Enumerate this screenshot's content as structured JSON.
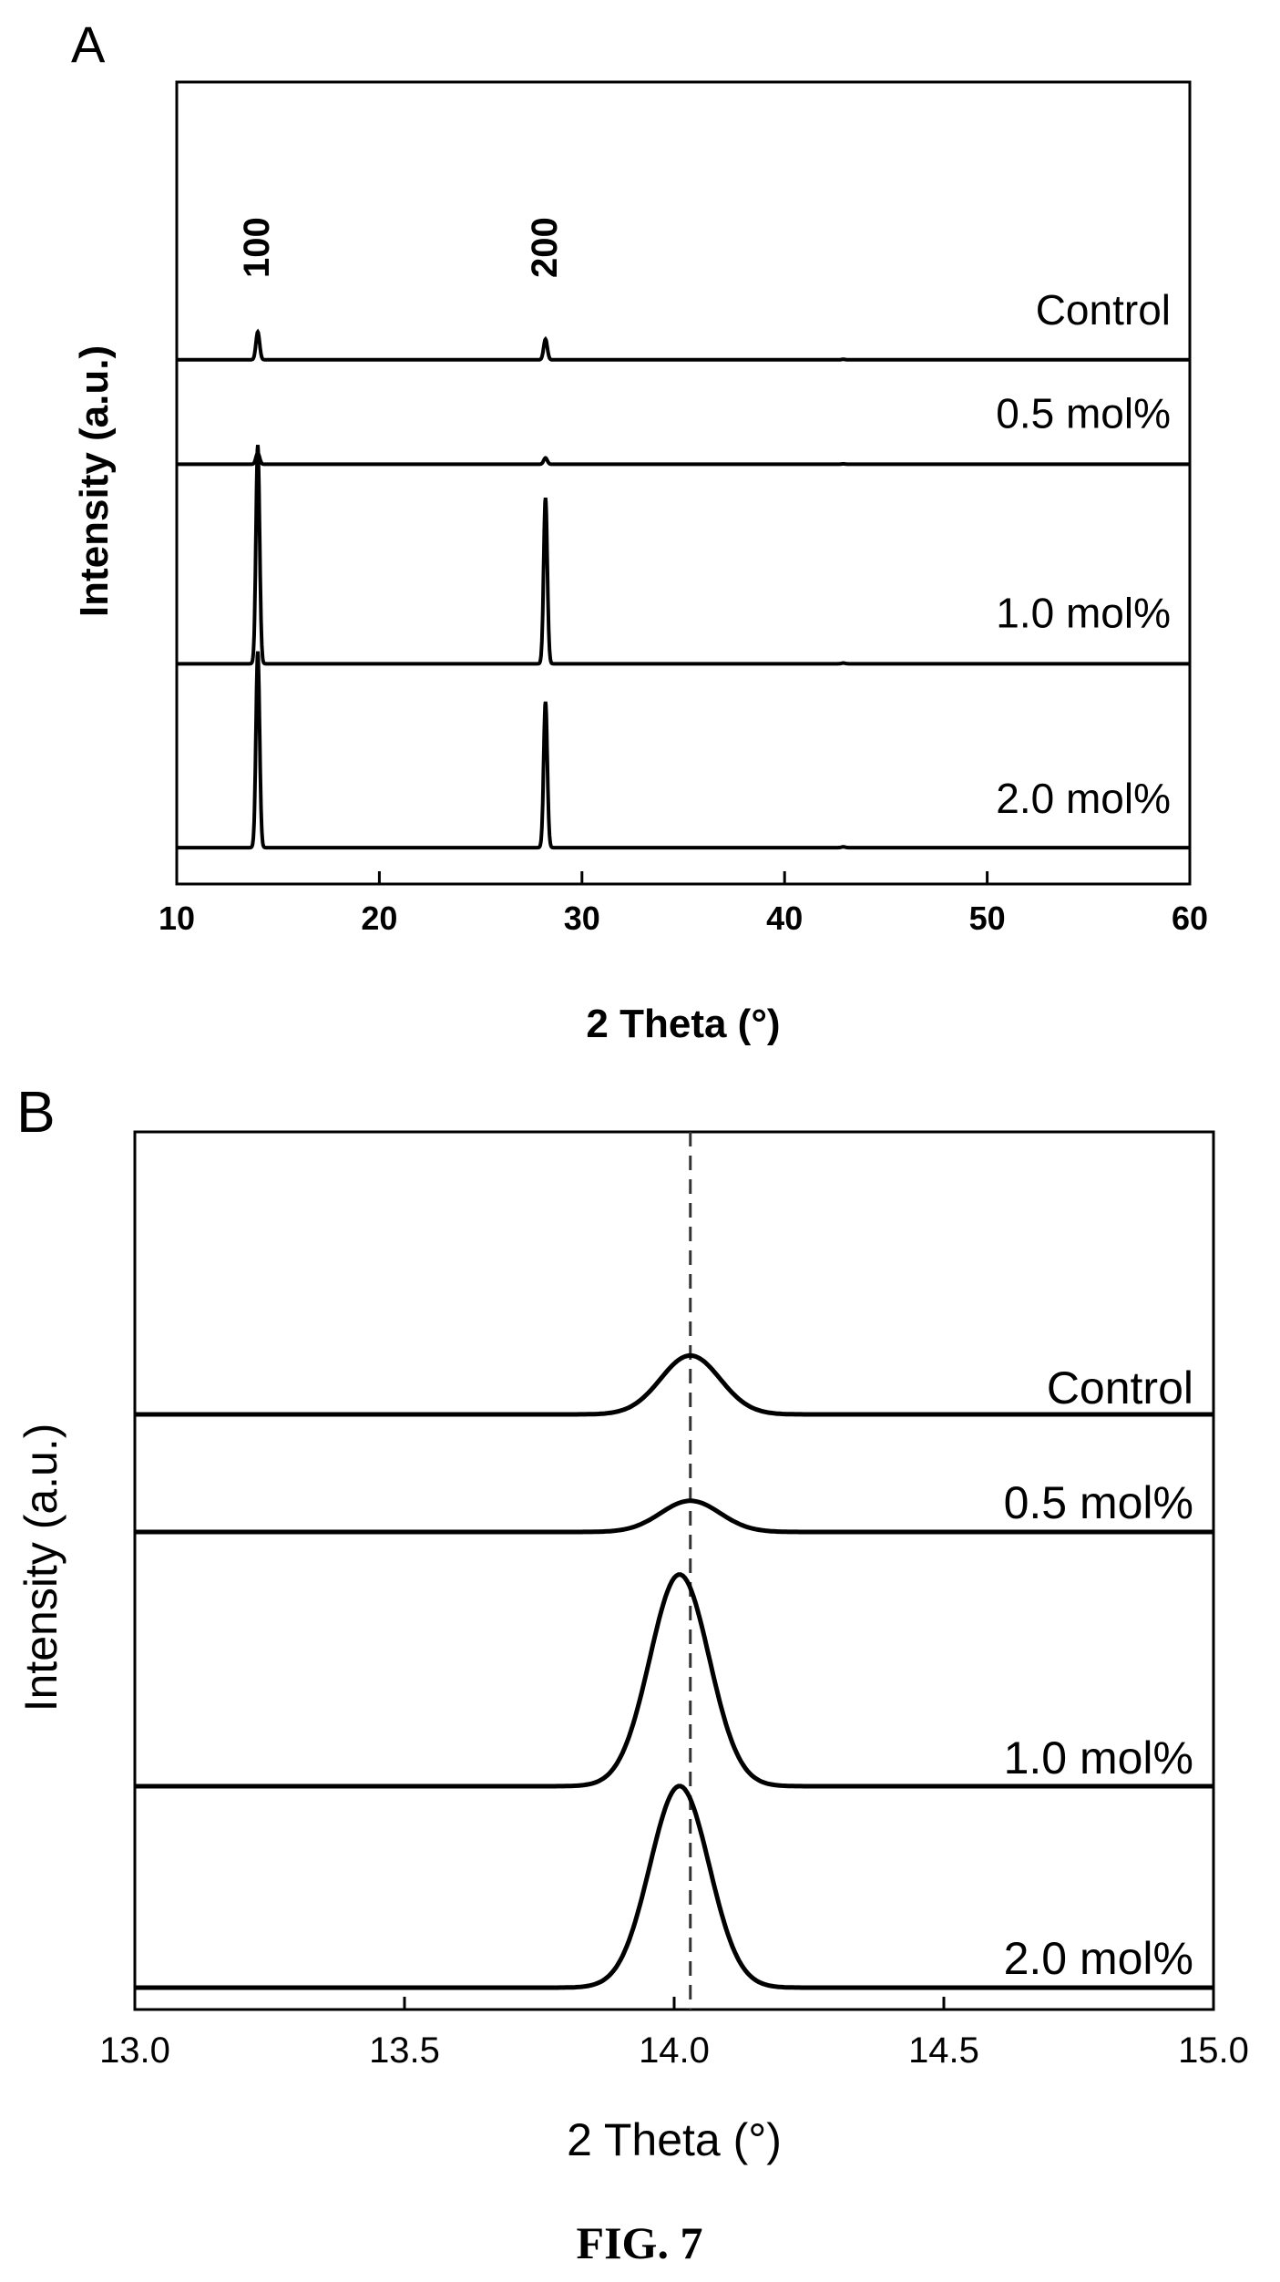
{
  "figure_caption": "FIG. 7",
  "chart_data": [
    {
      "panel": "A",
      "type": "line",
      "xlabel": "2 Theta (°)",
      "ylabel": "Intensity (a.u.)",
      "xlim": [
        10,
        60
      ],
      "xticks": [
        10,
        20,
        30,
        40,
        50,
        60
      ],
      "yticks": "none (arbitrary units, curves vertically offset)",
      "grid": false,
      "peak_labels": [
        {
          "text": "100",
          "x": 14.0
        },
        {
          "text": "200",
          "x": 28.2
        }
      ],
      "series": [
        {
          "name": "Control",
          "peaks": [
            {
              "x": 14.0,
              "rel_height": 0.19
            },
            {
              "x": 28.2,
              "rel_height": 0.14
            }
          ]
        },
        {
          "name": "0.5 mol%",
          "peaks": [
            {
              "x": 14.0,
              "rel_height": 0.09
            },
            {
              "x": 28.2,
              "rel_height": 0.05
            }
          ]
        },
        {
          "name": "1.0 mol%",
          "peaks": [
            {
              "x": 14.0,
              "rel_height": 0.87
            },
            {
              "x": 28.2,
              "rel_height": 0.66
            }
          ]
        },
        {
          "name": "2.0 mol%",
          "peaks": [
            {
              "x": 14.0,
              "rel_height": 0.78
            },
            {
              "x": 28.2,
              "rel_height": 0.58
            }
          ]
        }
      ]
    },
    {
      "panel": "B",
      "type": "line",
      "xlabel": "2 Theta (°)",
      "ylabel": "Intensity (a.u.)",
      "xlim": [
        13.0,
        15.0
      ],
      "xticks": [
        "13.0",
        "13.5",
        "14.0",
        "14.5",
        "15.0"
      ],
      "yticks": "none (arbitrary units, curves vertically offset)",
      "grid": false,
      "reference_line_x": 14.03,
      "series": [
        {
          "name": "Control",
          "peak_x": 14.03,
          "rel_height": 0.17
        },
        {
          "name": "0.5 mol%",
          "peak_x": 14.03,
          "rel_height": 0.09
        },
        {
          "name": "1.0 mol%",
          "peak_x": 14.01,
          "rel_height": 0.83
        },
        {
          "name": "2.0 mol%",
          "peak_x": 14.01,
          "rel_height": 0.79
        }
      ]
    }
  ]
}
